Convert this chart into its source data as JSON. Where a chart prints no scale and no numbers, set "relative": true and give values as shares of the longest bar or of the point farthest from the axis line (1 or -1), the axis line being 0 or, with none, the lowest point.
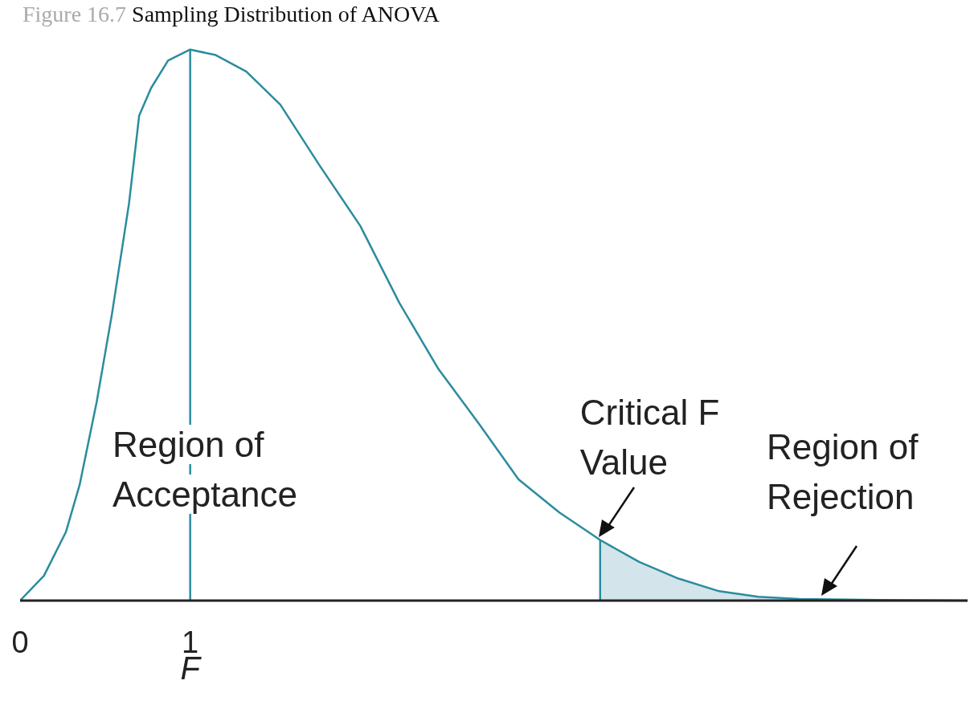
{
  "chart_data": {
    "type": "line",
    "title": "Figure 16.7 Sampling Distribution of ANOVA",
    "xlabel": "F",
    "relative": true,
    "xlim": [
      0,
      5.57
    ],
    "xticks": [
      0,
      1
    ],
    "series": [
      {
        "type": "area",
        "color": "#d3e5ea",
        "x": [
          3.41,
          3.64,
          3.87,
          4.11,
          4.34,
          4.58,
          5.05,
          5.57
        ],
        "values": [
          0.11,
          0.07,
          0.04,
          0.017,
          0.007,
          0.003,
          0.001,
          0
        ]
      },
      {
        "color": "#2b8c9e",
        "x": [
          0,
          0.14,
          0.27,
          0.35,
          0.45,
          0.54,
          0.64,
          0.7,
          0.77,
          0.87,
          1,
          1.15,
          1.33,
          1.53,
          1.76,
          2,
          2.23,
          2.46,
          2.7,
          2.93,
          3.17,
          3.41,
          3.64,
          3.87,
          4.11,
          4.34,
          4.58,
          5.05,
          5.57
        ],
        "values": [
          0,
          0.045,
          0.125,
          0.21,
          0.36,
          0.52,
          0.72,
          0.88,
          0.93,
          0.98,
          1,
          0.99,
          0.96,
          0.9,
          0.79,
          0.68,
          0.54,
          0.42,
          0.32,
          0.22,
          0.16,
          0.11,
          0.07,
          0.04,
          0.017,
          0.007,
          0.003,
          0.001,
          0
        ]
      },
      {
        "color": "#2b8c9e",
        "x": [
          1,
          1
        ],
        "values": [
          0,
          1
        ]
      },
      {
        "color": "#2b8c9e",
        "x": [
          3.41,
          3.41
        ],
        "values": [
          0,
          0.11
        ]
      }
    ],
    "annotations": [
      "Region of Acceptance",
      {
        "text": "Critical F Value",
        "x": 3.41,
        "y": 0.11
      },
      {
        "text": "Region of Rejection",
        "x": 4.72,
        "y": 0.003
      }
    ],
    "marker": "none"
  }
}
